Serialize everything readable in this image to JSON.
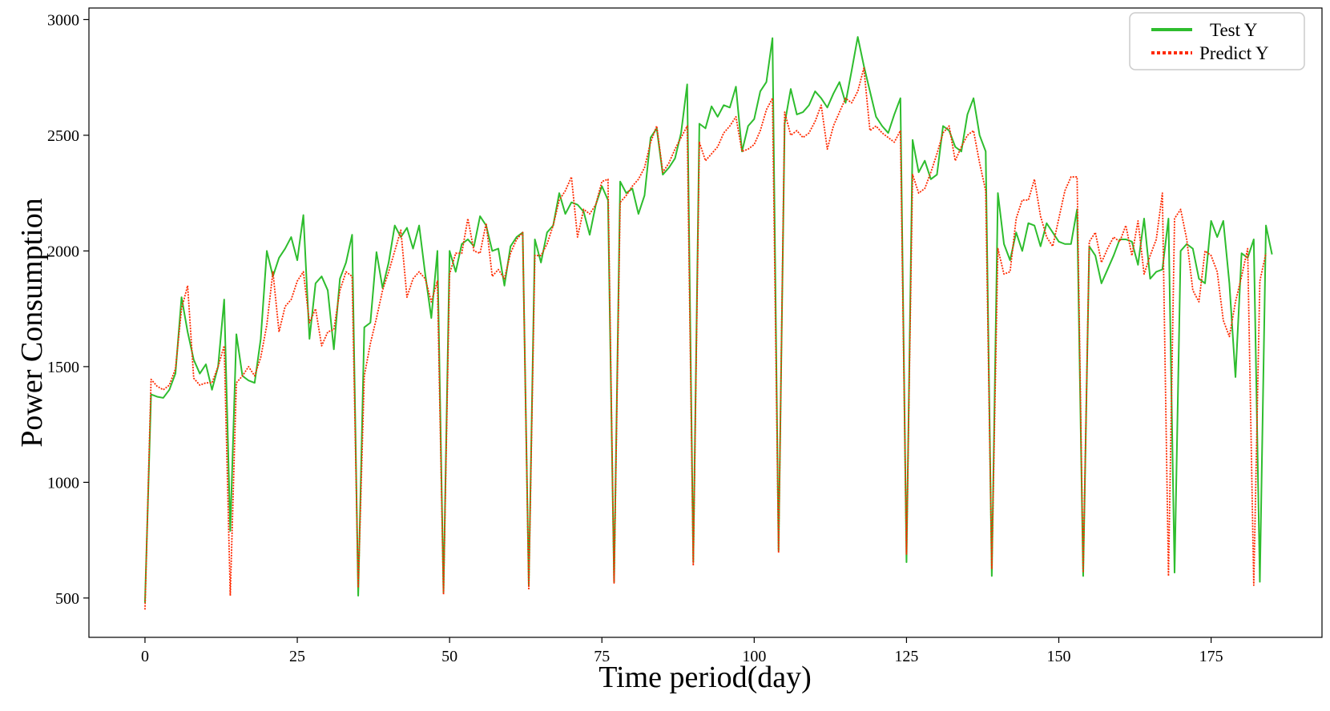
{
  "chart_data": {
    "type": "line",
    "title": "",
    "xlabel": "Time period(day)",
    "ylabel": "Power Consumption",
    "xlim": [
      -9.2,
      193.2
    ],
    "ylim": [
      330,
      3050
    ],
    "xticks": [
      0,
      25,
      50,
      75,
      100,
      125,
      150,
      175
    ],
    "yticks": [
      500,
      1000,
      1500,
      2000,
      2500,
      3000
    ],
    "grid": false,
    "legend_position": "top-right",
    "series": [
      {
        "name": "Test Y",
        "color": "#2ebd2e",
        "style": "solid",
        "values": [
          480,
          1380,
          1370,
          1365,
          1400,
          1470,
          1800,
          1650,
          1530,
          1470,
          1510,
          1400,
          1500,
          1790,
          790,
          1640,
          1460,
          1440,
          1430,
          1620,
          2000,
          1890,
          1970,
          2010,
          2060,
          1960,
          2155,
          1620,
          1860,
          1890,
          1830,
          1575,
          1880,
          1950,
          2070,
          510,
          1670,
          1690,
          1995,
          1840,
          1950,
          2110,
          2060,
          2100,
          2010,
          2110,
          1900,
          1710,
          2000,
          525,
          2000,
          1910,
          2030,
          2050,
          2020,
          2150,
          2110,
          2000,
          2010,
          1850,
          2020,
          2060,
          2080,
          555,
          2050,
          1950,
          2080,
          2110,
          2250,
          2160,
          2210,
          2200,
          2170,
          2070,
          2200,
          2280,
          2220,
          570,
          2300,
          2250,
          2270,
          2160,
          2240,
          2490,
          2530,
          2330,
          2360,
          2400,
          2510,
          2720,
          655,
          2550,
          2530,
          2625,
          2580,
          2630,
          2620,
          2710,
          2430,
          2540,
          2570,
          2690,
          2730,
          2920,
          705,
          2550,
          2700,
          2590,
          2600,
          2630,
          2690,
          2660,
          2620,
          2680,
          2730,
          2640,
          2780,
          2925,
          2800,
          2690,
          2580,
          2540,
          2510,
          2590,
          2660,
          655,
          2480,
          2340,
          2390,
          2310,
          2330,
          2540,
          2520,
          2450,
          2430,
          2590,
          2660,
          2500,
          2430,
          595,
          2250,
          2030,
          1960,
          2080,
          2000,
          2120,
          2110,
          2020,
          2120,
          2080,
          2040,
          2030,
          2030,
          2180,
          595,
          2020,
          1980,
          1860,
          1920,
          1980,
          2050,
          2050,
          2040,
          1940,
          2140,
          1880,
          1910,
          1920,
          2140,
          610,
          2000,
          2030,
          2010,
          1880,
          1860,
          2130,
          2060,
          2130,
          1860,
          1455,
          1990,
          1970,
          2050,
          570,
          2110,
          1985
        ]
      },
      {
        "name": "Predict Y",
        "color": "#ff2a00",
        "style": "dotted",
        "values": [
          450,
          1445,
          1415,
          1400,
          1420,
          1490,
          1750,
          1850,
          1450,
          1420,
          1430,
          1430,
          1500,
          1590,
          510,
          1430,
          1460,
          1500,
          1460,
          1540,
          1680,
          1910,
          1650,
          1760,
          1790,
          1870,
          1910,
          1690,
          1750,
          1590,
          1650,
          1660,
          1830,
          1910,
          1890,
          545,
          1460,
          1600,
          1710,
          1830,
          1910,
          2000,
          2090,
          1800,
          1880,
          1910,
          1880,
          1780,
          1870,
          515,
          1900,
          1990,
          1990,
          2140,
          2000,
          1990,
          2120,
          1890,
          1920,
          1880,
          1990,
          2050,
          2080,
          540,
          1980,
          1980,
          2030,
          2110,
          2220,
          2260,
          2320,
          2060,
          2180,
          2160,
          2200,
          2300,
          2310,
          565,
          2210,
          2240,
          2280,
          2310,
          2360,
          2470,
          2540,
          2340,
          2380,
          2440,
          2490,
          2540,
          640,
          2470,
          2390,
          2420,
          2450,
          2510,
          2540,
          2580,
          2430,
          2440,
          2460,
          2520,
          2610,
          2660,
          695,
          2600,
          2500,
          2520,
          2490,
          2510,
          2560,
          2630,
          2440,
          2540,
          2600,
          2660,
          2640,
          2690,
          2790,
          2520,
          2540,
          2510,
          2490,
          2470,
          2520,
          690,
          2330,
          2250,
          2270,
          2340,
          2420,
          2510,
          2540,
          2390,
          2450,
          2500,
          2520,
          2380,
          2260,
          625,
          2010,
          1900,
          1910,
          2140,
          2220,
          2220,
          2310,
          2150,
          2060,
          2020,
          2140,
          2260,
          2320,
          2320,
          610,
          2040,
          2080,
          1950,
          2010,
          2060,
          2040,
          2110,
          1980,
          2130,
          1900,
          1980,
          2050,
          2250,
          595,
          2140,
          2180,
          2050,
          1830,
          1780,
          2000,
          1980,
          1910,
          1700,
          1630,
          1780,
          1890,
          2010,
          555,
          1870,
          1990
        ]
      }
    ]
  }
}
